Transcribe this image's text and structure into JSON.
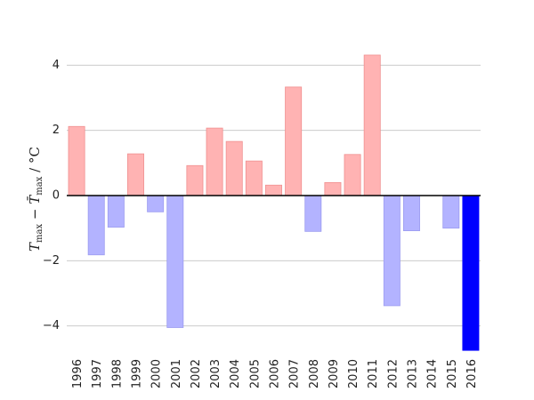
{
  "chart_data": {
    "type": "bar",
    "categories": [
      "1996",
      "1997",
      "1998",
      "1999",
      "2000",
      "2001",
      "2002",
      "2003",
      "2004",
      "2005",
      "2006",
      "2007",
      "2008",
      "2009",
      "2010",
      "2011",
      "2012",
      "2013",
      "2014",
      "2015",
      "2016"
    ],
    "values": [
      2.12,
      -1.82,
      -0.97,
      1.28,
      -0.5,
      -4.05,
      0.92,
      2.07,
      1.66,
      1.06,
      0.32,
      3.33,
      -1.1,
      0.4,
      1.26,
      4.31,
      -3.38,
      -1.08,
      0.0,
      -1.0,
      -4.75
    ],
    "highlight_index": 20,
    "ylabel": "T_max − T̄_max / °C",
    "ylim": [
      -4.8,
      4.8
    ],
    "yticks": [
      -4,
      -2,
      0,
      2,
      4
    ],
    "ytick_labels": [
      "−4",
      "−2",
      "0",
      "2",
      "4"
    ],
    "grid": true,
    "colors": {
      "positive": "#ffb3b3",
      "positive_edge": "#f08f8f",
      "negative": "#b3b3ff",
      "negative_edge": "#9c9cf0",
      "highlight": "#0000ff",
      "grid": "#cccccc",
      "zero_line": "#000000"
    }
  }
}
